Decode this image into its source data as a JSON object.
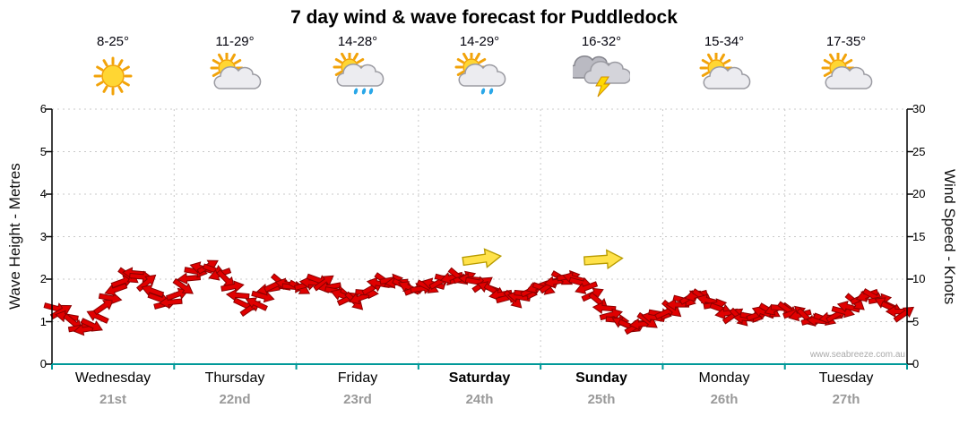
{
  "title": "7 day wind & wave forecast for Puddledock",
  "watermark": "www.seabreeze.com.au",
  "days": [
    {
      "name": "Wednesday",
      "date": "21st",
      "temp": "8-25°",
      "icon": "sun",
      "bold": false
    },
    {
      "name": "Thursday",
      "date": "22nd",
      "temp": "11-29°",
      "icon": "sun-cloud",
      "bold": false
    },
    {
      "name": "Friday",
      "date": "23rd",
      "temp": "14-28°",
      "icon": "sun-cloud-rain",
      "bold": false
    },
    {
      "name": "Saturday",
      "date": "24th",
      "temp": "14-29°",
      "icon": "sun-cloud-rain-light",
      "bold": true
    },
    {
      "name": "Sunday",
      "date": "25th",
      "temp": "16-32°",
      "icon": "storm",
      "bold": true
    },
    {
      "name": "Monday",
      "date": "26th",
      "temp": "15-34°",
      "icon": "sun-cloud",
      "bold": false
    },
    {
      "name": "Tuesday",
      "date": "27th",
      "temp": "17-35°",
      "icon": "sun-cloud",
      "bold": false
    }
  ],
  "colors": {
    "grid": "#c8c8c8",
    "axis": "#000000",
    "baseline": "#009999",
    "wind_fill": "#e00000",
    "wind_outline": "#8b0000",
    "gust_fill": "#ffe24a",
    "gust_outline": "#b89b00"
  },
  "chart_data": {
    "type": "scatter",
    "subtype": "wind-direction-arrows",
    "title": "7 day wind & wave forecast for Puddledock",
    "x_categories": [
      "Wednesday 21st",
      "Thursday 22nd",
      "Friday 23rd",
      "Saturday 24th",
      "Sunday 25th",
      "Monday 26th",
      "Tuesday 27th"
    ],
    "left_axis": {
      "label": "Wave Height - Metres",
      "range": [
        0,
        6
      ],
      "ticks": [
        0,
        1,
        2,
        3,
        4,
        5,
        6
      ]
    },
    "right_axis": {
      "label": "Wind Speed - Knots",
      "range": [
        0,
        30
      ],
      "ticks": [
        0,
        5,
        10,
        15,
        20,
        25,
        30
      ]
    },
    "grid": true,
    "legend": false,
    "series": [
      {
        "name": "wind-speed-arrows",
        "unit": "knots",
        "samples_per_day": 20,
        "days": [
          {
            "knots": [
              6.6,
              6.2,
              5.6,
              4.9,
              4.3,
              4.1,
              4.6,
              5.6,
              6.8,
              7.8,
              8.8,
              9.7,
              10.4,
              10.7,
              10.3,
              9.6,
              8.6,
              7.7,
              7.1,
              7.3
            ],
            "angles": [
              15,
              -30,
              190,
              40,
              -10,
              170,
              25,
              205,
              -35,
              10,
              160,
              -20,
              35,
              185,
              5,
              -40,
              200,
              20,
              -15,
              175
            ]
          },
          {
            "knots": [
              8.2,
              9.1,
              10.1,
              10.9,
              11.3,
              11.5,
              11.1,
              10.6,
              10.0,
              9.1,
              8.1,
              7.0,
              6.6,
              7.1,
              8.0,
              8.8,
              9.3,
              9.6,
              9.4,
              9.1
            ],
            "angles": [
              -20,
              35,
              175,
              10,
              195,
              -30,
              20,
              160,
              45,
              -10,
              185,
              25,
              -35,
              205,
              15,
              170,
              -25,
              40,
              190,
              5
            ]
          },
          {
            "knots": [
              9.0,
              9.3,
              9.6,
              9.9,
              9.6,
              9.1,
              8.6,
              8.1,
              7.7,
              7.4,
              7.8,
              8.4,
              9.0,
              9.5,
              9.8,
              9.9,
              9.6,
              9.3,
              9.0,
              8.8
            ],
            "angles": [
              30,
              -15,
              185,
              20,
              -35,
              170,
              10,
              200,
              -25,
              45,
              160,
              5,
              -30,
              190,
              35,
              -10,
              175,
              25,
              205,
              -20
            ]
          },
          {
            "knots": [
              8.9,
              9.1,
              9.4,
              9.7,
              10.0,
              10.2,
              10.3,
              10.2,
              10.0,
              9.7,
              9.4,
              9.0,
              8.6,
              8.2,
              7.8,
              7.6,
              7.9,
              8.3,
              8.7,
              9.1
            ],
            "angles": [
              -10,
              25,
              195,
              -30,
              15,
              165,
              40,
              -20,
              185,
              10,
              -35,
              200,
              30,
              170,
              -15,
              45,
              190,
              5,
              -25,
              160
            ]
          },
          {
            "knots": [
              8.9,
              9.3,
              9.7,
              10.1,
              10.3,
              10.1,
              9.6,
              9.0,
              8.2,
              7.4,
              6.6,
              5.8,
              5.2,
              4.8,
              4.5,
              4.4,
              4.7,
              5.1,
              5.5,
              5.9
            ],
            "angles": [
              20,
              -35,
              170,
              30,
              -10,
              195,
              15,
              160,
              -25,
              40,
              185,
              -15,
              5,
              205,
              25,
              -30,
              175,
              35,
              190,
              10
            ]
          },
          {
            "knots": [
              6.1,
              6.5,
              7.0,
              7.5,
              7.9,
              8.1,
              7.9,
              7.5,
              7.0,
              6.5,
              6.0,
              5.7,
              5.5,
              5.4,
              5.6,
              5.8,
              6.1,
              6.3,
              6.5,
              6.6
            ],
            "angles": [
              -25,
              40,
              180,
              15,
              -30,
              165,
              35,
              195,
              -10,
              20,
              170,
              -35,
              45,
              185,
              10,
              -20,
              200,
              30,
              160,
              5
            ]
          },
          {
            "knots": [
              6.4,
              6.1,
              5.8,
              5.5,
              5.2,
              5.1,
              5.3,
              5.5,
              5.8,
              6.2,
              6.7,
              7.3,
              7.8,
              8.1,
              8.0,
              7.6,
              7.1,
              6.6,
              6.2,
              5.9
            ],
            "angles": [
              35,
              -20,
              165,
              45,
              -15,
              185,
              20,
              170,
              -30,
              15,
              195,
              40,
              -25,
              160,
              30,
              -10,
              205,
              25,
              180,
              -35
            ]
          }
        ]
      },
      {
        "name": "gust-arrows",
        "unit": "knots",
        "points": [
          {
            "x_frac": 0.502,
            "knots": 12.4,
            "angle": -8
          },
          {
            "x_frac": 0.644,
            "knots": 12.3,
            "angle": -4
          }
        ]
      }
    ]
  }
}
